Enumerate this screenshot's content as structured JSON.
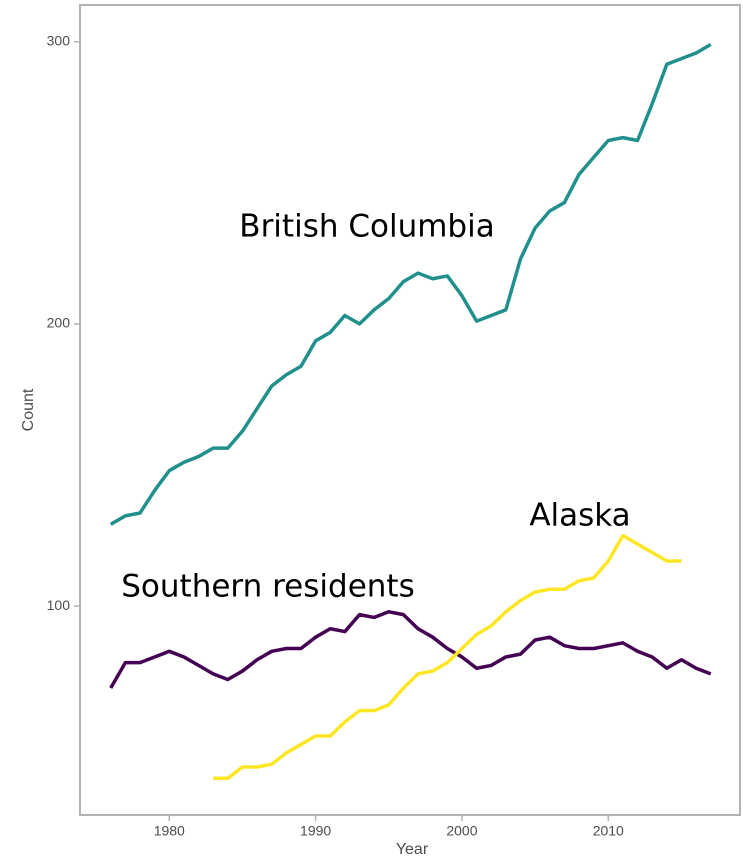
{
  "chart_data": {
    "type": "line",
    "xlabel": "Year",
    "ylabel": "Count",
    "x": [
      1976,
      1977,
      1978,
      1979,
      1980,
      1981,
      1982,
      1983,
      1984,
      1985,
      1986,
      1987,
      1988,
      1989,
      1990,
      1991,
      1992,
      1993,
      1994,
      1995,
      1996,
      1997,
      1998,
      1999,
      2000,
      2001,
      2002,
      2003,
      2004,
      2005,
      2006,
      2007,
      2008,
      2009,
      2010,
      2011,
      2012,
      2013,
      2014,
      2015,
      2016,
      2017
    ],
    "series": [
      {
        "name": "British Columbia",
        "color": "#21908d",
        "values": [
          129,
          132,
          133,
          141,
          148,
          151,
          153,
          156,
          156,
          162,
          170,
          178,
          182,
          185,
          194,
          197,
          203,
          200,
          205,
          209,
          215,
          218,
          216,
          217,
          210,
          201,
          203,
          205,
          223,
          234,
          240,
          243,
          253,
          259,
          265,
          266,
          265,
          278,
          292,
          294,
          296,
          299
        ]
      },
      {
        "name": "Southern residents",
        "color": "#440154",
        "values": [
          71,
          80,
          80,
          82,
          84,
          82,
          79,
          76,
          74,
          77,
          81,
          84,
          85,
          85,
          89,
          92,
          91,
          97,
          96,
          98,
          97,
          92,
          89,
          85,
          82,
          78,
          79,
          82,
          83,
          88,
          89,
          86,
          85,
          85,
          86,
          87,
          84,
          82,
          78,
          81,
          78,
          76
        ]
      },
      {
        "name": "Alaska",
        "color": "#fde725",
        "values": [
          null,
          null,
          null,
          null,
          null,
          null,
          null,
          39,
          39,
          43,
          43,
          44,
          48,
          51,
          54,
          54,
          59,
          63,
          63,
          65,
          71,
          76,
          77,
          80,
          85,
          90,
          93,
          98,
          102,
          105,
          106,
          106,
          109,
          110,
          116,
          125,
          122,
          119,
          116,
          116,
          null,
          null
        ]
      }
    ],
    "xlim": [
      1973.9,
      2019
    ],
    "xticks": [
      1980,
      1990,
      2000,
      2010
    ],
    "ylim": [
      26,
      313
    ],
    "yticks": [
      100,
      200,
      300
    ],
    "grid": false,
    "legend": false
  }
}
